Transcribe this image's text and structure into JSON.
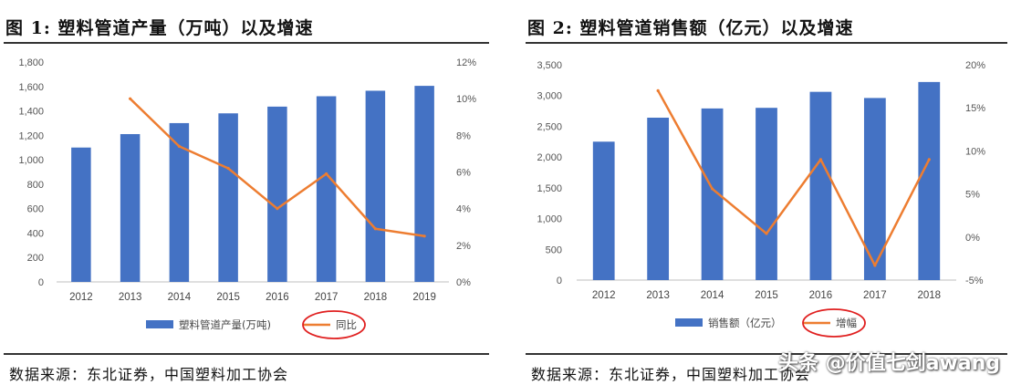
{
  "figures": [
    {
      "title": "图 1: 塑料管道产量（万吨）以及增速",
      "source": "数据来源：东北证券，中国塑料加工协会"
    },
    {
      "title": "图 2: 塑料管道销售额（亿元）以及增速",
      "source": "数据来源：东北证券，中国塑料加工协会"
    }
  ],
  "watermark": "头条 @价值七剑awang",
  "colors": {
    "bar": "#4472C4",
    "line": "#ED7D31",
    "highlight": "#E02020"
  },
  "chart_data": [
    {
      "type": "bar",
      "title": "图 1: 塑料管道产量（万吨）以及增速",
      "categories": [
        "2012",
        "2013",
        "2014",
        "2015",
        "2016",
        "2017",
        "2018",
        "2019"
      ],
      "series": [
        {
          "name": "塑料管道产量(万吨)",
          "type": "bar",
          "axis": "left",
          "values": [
            1100,
            1210,
            1300,
            1380,
            1435,
            1520,
            1565,
            1605
          ]
        },
        {
          "name": "同比",
          "type": "line",
          "axis": "right",
          "values": [
            null,
            10.0,
            7.4,
            6.2,
            4.0,
            5.9,
            2.9,
            2.5
          ]
        }
      ],
      "yleft": {
        "ticks": [
          "0",
          "200",
          "400",
          "600",
          "800",
          "1,000",
          "1,200",
          "1,400",
          "1,600",
          "1,800"
        ],
        "lim": [
          0,
          1800
        ]
      },
      "yright": {
        "ticks": [
          "0%",
          "2%",
          "4%",
          "6%",
          "8%",
          "10%",
          "12%"
        ],
        "lim": [
          0,
          12
        ]
      },
      "legend": "bottom",
      "grid": false
    },
    {
      "type": "bar",
      "title": "图 2: 塑料管道销售额（亿元）以及增速",
      "categories": [
        "2012",
        "2013",
        "2014",
        "2015",
        "2016",
        "2017",
        "2018"
      ],
      "series": [
        {
          "name": "销售额（亿元）",
          "type": "bar",
          "axis": "left",
          "values": [
            2250,
            2640,
            2790,
            2800,
            3060,
            2960,
            3220
          ]
        },
        {
          "name": "增幅",
          "type": "line",
          "axis": "right",
          "values": [
            null,
            17.0,
            5.6,
            0.4,
            9.0,
            -3.3,
            9.0
          ]
        }
      ],
      "yleft": {
        "ticks": [
          "0",
          "500",
          "1,000",
          "1,500",
          "2,000",
          "2,500",
          "3,000",
          "3,500"
        ],
        "lim": [
          0,
          3500
        ]
      },
      "yright": {
        "ticks": [
          "-5%",
          "0%",
          "5%",
          "10%",
          "15%",
          "20%"
        ],
        "lim": [
          -5,
          20
        ]
      },
      "legend": "bottom",
      "grid": false
    }
  ]
}
